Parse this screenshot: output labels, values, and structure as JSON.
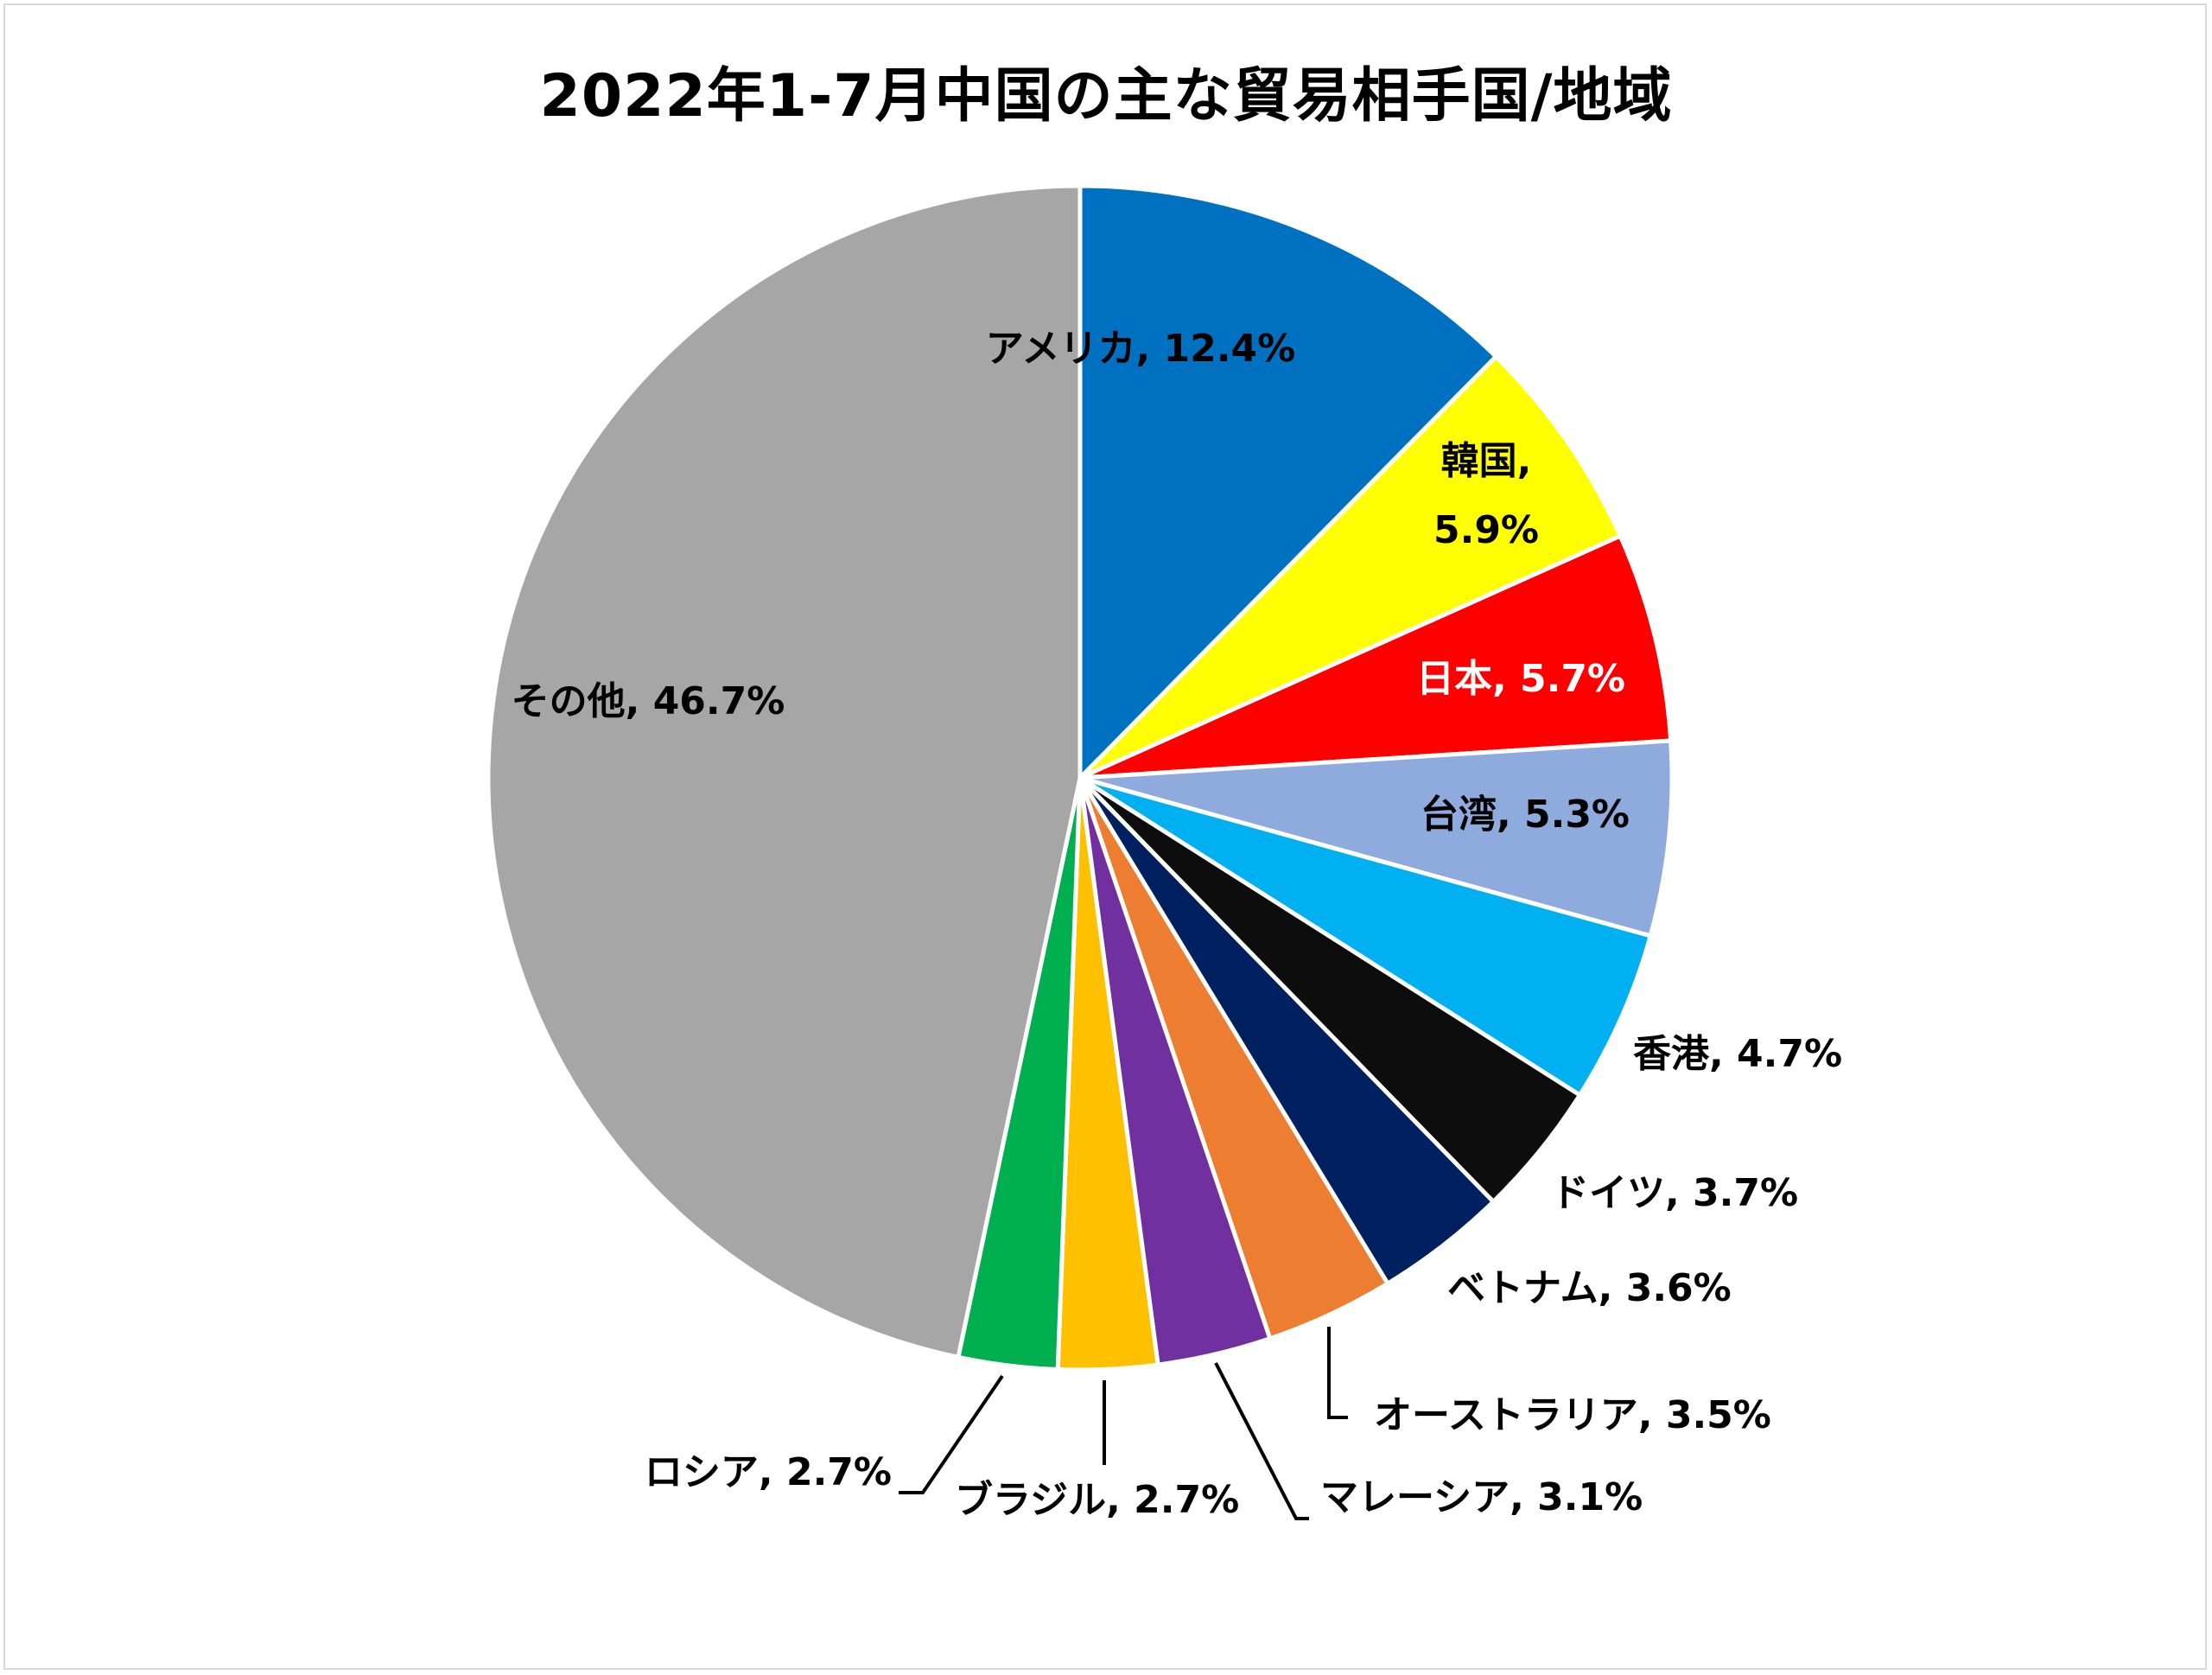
{
  "chart_data": {
    "type": "pie",
    "title": "2022年1-7月中国の主な貿易相手国/地域",
    "start_angle_deg": 0,
    "direction": "clockwise",
    "slices": [
      {
        "key": "usa",
        "label": "アメリカ",
        "value": 12.4,
        "text": "12.4%",
        "color": "#0070c0"
      },
      {
        "key": "korea",
        "label": "韓国",
        "value": 5.9,
        "text": "5.9%",
        "color": "#ffff00"
      },
      {
        "key": "japan",
        "label": "日本",
        "value": 5.7,
        "text": "5.7%",
        "color": "#ff0000"
      },
      {
        "key": "taiwan",
        "label": "台湾",
        "value": 5.3,
        "text": "5.3%",
        "color": "#8faadc"
      },
      {
        "key": "hongkong",
        "label": "香港",
        "value": 4.7,
        "text": "4.7%",
        "color": "#00b0f0"
      },
      {
        "key": "germany",
        "label": "ドイツ",
        "value": 3.7,
        "text": "3.7%",
        "color": "#0d0d0d"
      },
      {
        "key": "vietnam",
        "label": "ベトナム",
        "value": 3.6,
        "text": "3.6%",
        "color": "#002060"
      },
      {
        "key": "australia",
        "label": "オーストラリア",
        "value": 3.5,
        "text": "3.5%",
        "color": "#ed7d31"
      },
      {
        "key": "malaysia",
        "label": "マレーシア",
        "value": 3.1,
        "text": "3.1%",
        "color": "#7030a0"
      },
      {
        "key": "brazil",
        "label": "ブラジル",
        "value": 2.7,
        "text": "2.7%",
        "color": "#ffc000"
      },
      {
        "key": "russia",
        "label": "ロシア",
        "value": 2.7,
        "text": "2.7%",
        "color": "#00b050"
      },
      {
        "key": "other",
        "label": "その他",
        "value": 46.7,
        "text": "46.7%",
        "color": "#a6a6a6"
      }
    ]
  }
}
